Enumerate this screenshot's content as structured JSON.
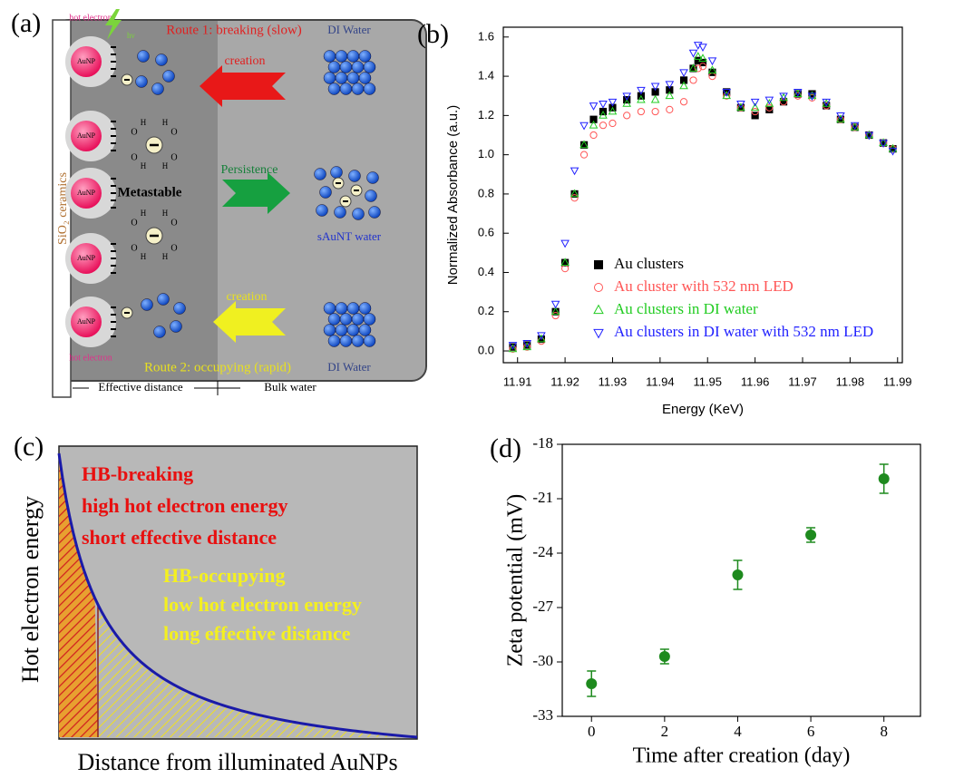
{
  "panel_a": {
    "label": "(a)",
    "hot_electron_top": "hot electron",
    "hv": "hν",
    "route1": "Route 1: breaking (slow)",
    "di_water_top": "DI Water",
    "creation_top": "creation",
    "persistence": "Persistence",
    "metastable": "Metastable",
    "sAuNT_water": "sAuNT water",
    "creation_bottom": "creation",
    "route2": "Route 2: occupying (rapid)",
    "di_water_bottom": "DI Water",
    "hot_electron_bottom": "hot electron",
    "substrate": "SiO₂ ceramics",
    "aunp": "AuNP",
    "hydrogen": "H",
    "oxygen": "O",
    "effective_distance": "Effective distance",
    "bulk_water": "Bulk water"
  },
  "panel_c": {
    "label": "(c)",
    "y_label": "Hot electron energy",
    "x_label": "Distance from illuminated AuNPs",
    "breaking_lines": [
      "HB-breaking",
      "high hot electron energy",
      "short effective distance"
    ],
    "occupying_lines": [
      "HB-occupying",
      "low hot electron energy",
      "long effective distance"
    ]
  },
  "chart_data": [
    {
      "type": "scatter",
      "label": "(b)",
      "x_label": "Energy (KeV)",
      "y_label": "Normalized Absorbance (a.u.)",
      "x": [
        11.909,
        11.912,
        11.915,
        11.918,
        11.92,
        11.922,
        11.924,
        11.926,
        11.928,
        11.93,
        11.933,
        11.936,
        11.939,
        11.942,
        11.945,
        11.947,
        11.948,
        11.949,
        11.951,
        11.954,
        11.957,
        11.96,
        11.963,
        11.966,
        11.969,
        11.972,
        11.975,
        11.978,
        11.981,
        11.984,
        11.987,
        11.989
      ],
      "series": [
        {
          "name": "Au clusters",
          "color": "#000000",
          "marker": "square",
          "values": [
            0.02,
            0.03,
            0.06,
            0.2,
            0.45,
            0.8,
            1.05,
            1.18,
            1.22,
            1.24,
            1.28,
            1.3,
            1.32,
            1.33,
            1.38,
            1.44,
            1.48,
            1.47,
            1.42,
            1.32,
            1.24,
            1.2,
            1.23,
            1.27,
            1.31,
            1.31,
            1.25,
            1.18,
            1.14,
            1.1,
            1.06,
            1.03
          ]
        },
        {
          "name": "Au cluster with 532 nm LED",
          "color": "#ff5555",
          "marker": "circle",
          "values": [
            0.01,
            0.02,
            0.05,
            0.18,
            0.42,
            0.78,
            1.0,
            1.1,
            1.15,
            1.16,
            1.2,
            1.22,
            1.22,
            1.23,
            1.27,
            1.38,
            1.44,
            1.45,
            1.4,
            1.3,
            1.24,
            1.22,
            1.24,
            1.27,
            1.3,
            1.29,
            1.25,
            1.18,
            1.14,
            1.1,
            1.06,
            1.03
          ]
        },
        {
          "name": "Au clusters in DI water",
          "color": "#22cc22",
          "marker": "triangle-up",
          "values": [
            0.01,
            0.02,
            0.06,
            0.2,
            0.45,
            0.8,
            1.05,
            1.15,
            1.2,
            1.22,
            1.26,
            1.28,
            1.28,
            1.3,
            1.35,
            1.44,
            1.5,
            1.49,
            1.43,
            1.3,
            1.24,
            1.24,
            1.26,
            1.29,
            1.31,
            1.3,
            1.26,
            1.18,
            1.14,
            1.1,
            1.06,
            1.03
          ]
        },
        {
          "name": "Au clusters in DI water with 532 nm LED",
          "color": "#2222ff",
          "marker": "triangle-down",
          "values": [
            0.03,
            0.04,
            0.08,
            0.24,
            0.55,
            0.92,
            1.15,
            1.25,
            1.26,
            1.27,
            1.3,
            1.33,
            1.35,
            1.36,
            1.42,
            1.52,
            1.56,
            1.55,
            1.48,
            1.32,
            1.26,
            1.27,
            1.28,
            1.3,
            1.32,
            1.3,
            1.27,
            1.2,
            1.15,
            1.1,
            1.06,
            1.02
          ]
        }
      ],
      "xlim": [
        11.907,
        11.991
      ],
      "xticks": [
        11.91,
        11.92,
        11.93,
        11.94,
        11.95,
        11.96,
        11.97,
        11.98,
        11.99
      ],
      "ylim": [
        -0.06,
        1.65
      ],
      "yticks": [
        {
          "value": 0,
          "label": "0.0"
        },
        0.2,
        0.4,
        0.6,
        0.8,
        {
          "value": 1,
          "label": "1.0"
        },
        1.2,
        1.4,
        1.6
      ]
    },
    {
      "type": "errorbar",
      "label": "(d)",
      "x_label": "Time after creation (day)",
      "y_label": "Zeta potential (mV)",
      "color": "#1e8a1e",
      "x": [
        0,
        2,
        4,
        6,
        8
      ],
      "values": [
        -31.2,
        -29.7,
        -25.2,
        -23.0,
        -19.9
      ],
      "errors": [
        0.7,
        0.4,
        0.8,
        0.4,
        0.8
      ],
      "xlim": [
        -0.8,
        9
      ],
      "xticks": [
        0,
        2,
        4,
        6,
        8
      ],
      "ylim": [
        -33,
        -18
      ],
      "yticks": [
        -33,
        -30,
        -27,
        -24,
        -21,
        -18
      ]
    }
  ]
}
